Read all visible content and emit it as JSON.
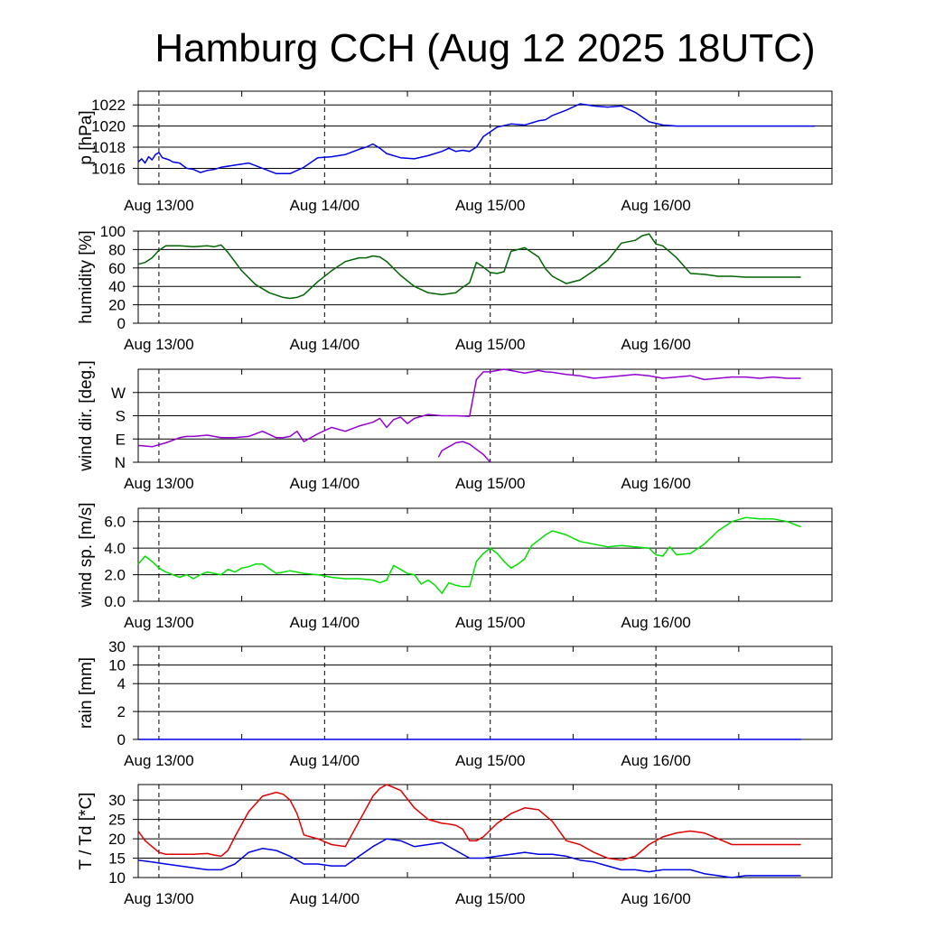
{
  "title": "Hamburg CCH (Aug 12 2025 18UTC)",
  "x_tick_labels": [
    "Aug 13/00",
    "Aug 14/00",
    "Aug 15/00",
    "Aug 16/00"
  ],
  "colors": {
    "pressure": "#0000e6",
    "humidity": "#006400",
    "wind_dir": "#9400d3",
    "wind_speed": "#00e000",
    "temperature": "#e00000",
    "dewpoint": "#0000e6"
  },
  "chart_data": [
    {
      "type": "line",
      "id": "pressure",
      "ylabel": "p [hPa]",
      "x_unit": "hours from Aug 12 18UTC",
      "ylim": [
        1014.5,
        1023.3
      ],
      "yticks": [
        1016,
        1018,
        1020,
        1022
      ],
      "grid": true,
      "series": [
        {
          "values_x": [
            0,
            1,
            2,
            3,
            4,
            5,
            6,
            7,
            8,
            9,
            10,
            12,
            14,
            16,
            18,
            20,
            22,
            24,
            28,
            32,
            36,
            40,
            44,
            48,
            52,
            56,
            60,
            64,
            66,
            68,
            70,
            72,
            76,
            80,
            84,
            88,
            90,
            92,
            94,
            96,
            98,
            100,
            104,
            108,
            112,
            116,
            118,
            120,
            124,
            128,
            132,
            136,
            140,
            144,
            148,
            152,
            156,
            160,
            164,
            168,
            172,
            176,
            180,
            184,
            186,
            188,
            190,
            192,
            194,
            196
          ],
          "values_y": [
            1016.6,
            1016.9,
            1016.5,
            1017.1,
            1016.8,
            1017.3,
            1017.5,
            1017.0,
            1016.9,
            1016.8,
            1016.6,
            1016.5,
            1016.0,
            1015.9,
            1015.6,
            1015.8,
            1015.9,
            1016.1,
            1016.3,
            1016.5,
            1016.0,
            1015.5,
            1015.5,
            1016.1,
            1017.0,
            1017.1,
            1017.3,
            1017.8,
            1018.0,
            1018.3,
            1017.9,
            1017.4,
            1017.0,
            1016.9,
            1017.2,
            1017.6,
            1017.9,
            1017.6,
            1017.7,
            1017.6,
            1018.0,
            1019.0,
            1019.9,
            1020.2,
            1020.1,
            1020.5,
            1020.6,
            1021.0,
            1021.5,
            1022.1,
            1021.9,
            1021.8,
            1021.9,
            1021.3,
            1020.4,
            1020.1,
            1020.0,
            1020.0,
            1020.0,
            1020.0,
            1020.0,
            1020.0,
            1020.0,
            1020.0,
            1020.0,
            1020.0,
            1020.0,
            1020.0,
            1020.0,
            1020.0
          ]
        }
      ]
    },
    {
      "type": "line",
      "id": "humidity",
      "ylabel": "humidity [%]",
      "ylim": [
        0,
        100
      ],
      "yticks": [
        0,
        20,
        40,
        60,
        80,
        100
      ],
      "grid": true,
      "series": [
        {
          "values_x": [
            0,
            2,
            4,
            6,
            8,
            12,
            16,
            20,
            22,
            24,
            26,
            30,
            34,
            38,
            42,
            44,
            46,
            48,
            52,
            56,
            60,
            64,
            66,
            68,
            70,
            72,
            76,
            80,
            84,
            88,
            92,
            94,
            96,
            98,
            100,
            102,
            104,
            106,
            108,
            112,
            116,
            118,
            120,
            124,
            128,
            132,
            136,
            140,
            144,
            146,
            148,
            150,
            152,
            156,
            160,
            164,
            168,
            172,
            176,
            180,
            184,
            188,
            192
          ],
          "values_y": [
            64,
            66,
            71,
            79,
            84,
            84,
            83,
            84,
            83,
            85,
            77,
            57,
            42,
            33,
            28,
            27,
            28,
            31,
            45,
            57,
            67,
            71,
            71,
            73,
            72,
            67,
            52,
            40,
            33,
            31,
            33,
            39,
            44,
            66,
            61,
            55,
            54,
            56,
            78,
            82,
            72,
            59,
            51,
            43,
            47,
            57,
            68,
            87,
            90,
            95,
            97,
            86,
            84,
            71,
            54,
            53,
            51,
            51,
            50,
            50,
            50,
            50,
            50
          ]
        }
      ]
    },
    {
      "type": "scatter",
      "id": "wind_dir",
      "ylabel": "wind dir. [deg.]",
      "ylim": [
        0,
        360
      ],
      "yticks": [
        0,
        90,
        180,
        270
      ],
      "ytick_labels": [
        "N",
        "E",
        "S",
        "W"
      ],
      "grid": true,
      "series": [
        {
          "values_x": [
            0,
            4,
            8,
            12,
            14,
            16,
            20,
            24,
            28,
            32,
            36,
            40,
            42,
            44,
            46,
            48,
            52,
            56,
            60,
            64,
            68,
            70,
            72,
            74,
            76,
            78,
            80,
            84,
            88,
            92,
            96,
            98,
            100,
            102,
            104,
            106,
            108,
            110,
            112,
            114,
            116,
            118,
            120,
            124,
            128,
            132,
            136,
            140,
            144,
            148,
            152,
            156,
            160,
            164,
            168,
            172,
            176,
            180,
            184,
            188,
            192
          ],
          "values_y": [
            65,
            60,
            75,
            95,
            100,
            100,
            105,
            95,
            95,
            100,
            120,
            95,
            95,
            100,
            120,
            80,
            110,
            135,
            120,
            140,
            155,
            170,
            135,
            165,
            175,
            150,
            170,
            185,
            180,
            180,
            178,
            320,
            350,
            350,
            355,
            360,
            355,
            350,
            345,
            350,
            355,
            350,
            348,
            340,
            335,
            325,
            330,
            335,
            340,
            335,
            325,
            330,
            335,
            320,
            325,
            330,
            330,
            325,
            330,
            325,
            325
          ]
        },
        {
          "values_x": [
            87,
            88,
            90,
            92,
            94,
            96,
            98,
            100,
            102
          ],
          "values_y": [
            20,
            45,
            60,
            75,
            80,
            70,
            50,
            30,
            0
          ]
        }
      ]
    },
    {
      "type": "line",
      "id": "wind_speed",
      "ylabel": "wind sp. [m/s]",
      "ylim": [
        0,
        7
      ],
      "yticks": [
        0.0,
        2.0,
        4.0,
        6.0
      ],
      "ytick_labels": [
        "0.0",
        "2.0",
        "4.0",
        "6.0"
      ],
      "grid": true,
      "series": [
        {
          "values_x": [
            0,
            2,
            4,
            6,
            8,
            10,
            12,
            14,
            16,
            18,
            20,
            22,
            24,
            26,
            28,
            30,
            32,
            34,
            36,
            40,
            44,
            48,
            52,
            56,
            60,
            64,
            68,
            70,
            72,
            74,
            76,
            78,
            80,
            82,
            84,
            86,
            88,
            90,
            92,
            94,
            96,
            98,
            100,
            102,
            104,
            106,
            108,
            110,
            112,
            114,
            116,
            118,
            120,
            124,
            128,
            132,
            136,
            140,
            144,
            148,
            150,
            152,
            154,
            156,
            160,
            164,
            168,
            172,
            176,
            180,
            184,
            188,
            192
          ],
          "values_y": [
            2.8,
            3.4,
            3.0,
            2.5,
            2.2,
            2.0,
            1.8,
            2.0,
            1.7,
            2.0,
            2.2,
            2.1,
            2.0,
            2.4,
            2.2,
            2.5,
            2.6,
            2.8,
            2.8,
            2.1,
            2.3,
            2.1,
            2.0,
            1.8,
            1.7,
            1.7,
            1.6,
            1.4,
            1.6,
            2.7,
            2.4,
            2.1,
            2.0,
            1.3,
            1.6,
            1.2,
            0.6,
            1.4,
            1.2,
            1.1,
            1.1,
            3.0,
            3.6,
            4.0,
            3.6,
            3.0,
            2.5,
            2.8,
            3.2,
            4.2,
            4.6,
            5.0,
            5.3,
            5.0,
            4.5,
            4.3,
            4.1,
            4.2,
            4.1,
            4.0,
            3.5,
            3.4,
            4.1,
            3.5,
            3.6,
            4.3,
            5.3,
            6.0,
            6.3,
            6.2,
            6.2,
            6.0,
            5.6
          ]
        }
      ]
    },
    {
      "type": "line",
      "id": "rain",
      "ylabel": "rain [mm]",
      "ylim": [
        0,
        30
      ],
      "yticks": [
        0,
        2,
        4,
        10,
        30
      ],
      "y_scale": "nonlinear",
      "grid": true,
      "series": [
        {
          "values_x": [
            0,
            192
          ],
          "values_y": [
            0,
            0
          ]
        }
      ]
    },
    {
      "type": "line",
      "id": "temperature",
      "ylabel": "T / Td [*C]",
      "ylim": [
        10,
        34
      ],
      "yticks": [
        10,
        15,
        20,
        25,
        30
      ],
      "grid": true,
      "series": [
        {
          "values_x": [
            0,
            2,
            4,
            6,
            8,
            12,
            16,
            20,
            22,
            24,
            26,
            28,
            32,
            36,
            40,
            42,
            44,
            46,
            48,
            52,
            56,
            60,
            64,
            68,
            70,
            72,
            76,
            80,
            84,
            88,
            90,
            92,
            94,
            96,
            98,
            100,
            104,
            108,
            112,
            116,
            120,
            124,
            128,
            132,
            136,
            140,
            144,
            148,
            152,
            156,
            160,
            164,
            168,
            172,
            176,
            180,
            184,
            188,
            192
          ],
          "values_y": [
            22.0,
            19.5,
            18.0,
            16.5,
            16.0,
            16.0,
            16.0,
            16.2,
            15.8,
            15.5,
            17.0,
            20.5,
            27.0,
            31.0,
            32.0,
            31.5,
            30.0,
            26.5,
            21.0,
            20.0,
            18.5,
            18.0,
            24.5,
            31.0,
            33.0,
            34.0,
            32.5,
            28.0,
            25.0,
            24.0,
            23.8,
            23.5,
            22.5,
            19.5,
            19.5,
            20.5,
            24.0,
            26.5,
            28.0,
            27.5,
            24.5,
            19.5,
            18.5,
            16.5,
            15.0,
            14.5,
            15.5,
            18.5,
            20.5,
            21.5,
            22.0,
            21.5,
            20.0,
            18.5,
            18.5,
            18.5,
            18.5,
            18.5,
            18.5
          ]
        },
        {
          "values_x": [
            0,
            4,
            8,
            12,
            16,
            20,
            24,
            28,
            32,
            36,
            40,
            44,
            48,
            52,
            56,
            60,
            64,
            68,
            72,
            76,
            80,
            84,
            88,
            92,
            96,
            100,
            104,
            108,
            112,
            116,
            120,
            124,
            128,
            132,
            136,
            140,
            144,
            148,
            152,
            156,
            160,
            164,
            168,
            172,
            176,
            180,
            184,
            188,
            192
          ],
          "values_y": [
            14.5,
            14.0,
            13.5,
            13.0,
            12.5,
            12.0,
            12.0,
            13.5,
            16.5,
            17.5,
            17.0,
            15.5,
            13.5,
            13.5,
            13.0,
            13.0,
            15.5,
            18.0,
            20.0,
            19.5,
            18.0,
            18.5,
            19.0,
            17.0,
            15.0,
            15.0,
            15.5,
            16.0,
            16.5,
            16.0,
            16.0,
            15.5,
            14.5,
            14.0,
            13.0,
            12.0,
            12.0,
            11.5,
            12.0,
            12.0,
            12.0,
            11.0,
            10.5,
            10.0,
            10.5,
            10.5,
            10.5,
            10.5,
            10.5
          ]
        }
      ]
    }
  ]
}
